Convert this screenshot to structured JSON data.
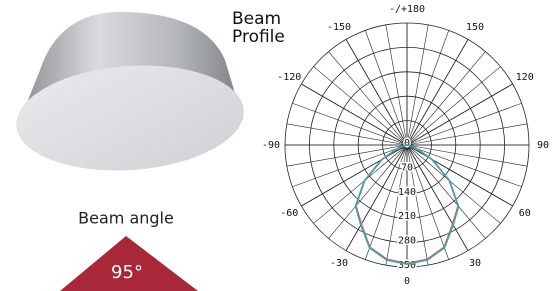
{
  "product": {
    "label": "Beam angle",
    "badge": "95°"
  },
  "chart_data": {
    "type": "polar",
    "title": "Beam Profile",
    "x": [
      -90,
      -80,
      -70,
      -60,
      -50,
      -40,
      -30,
      -20,
      -10,
      0,
      10,
      20,
      30,
      40,
      50,
      60,
      70,
      80,
      90
    ],
    "series": [
      {
        "color": "#e0553a",
        "values": [
          0,
          4,
          28,
          82,
          158,
          228,
          262,
          312,
          333,
          340,
          333,
          312,
          262,
          228,
          158,
          82,
          28,
          4,
          0
        ]
      },
      {
        "color": "#3aa6b9",
        "values": [
          0,
          5,
          30,
          85,
          160,
          230,
          265,
          314,
          335,
          342,
          335,
          314,
          265,
          230,
          160,
          85,
          30,
          5,
          0
        ]
      }
    ],
    "rlim": [
      0,
      350
    ],
    "rticks": [
      0,
      70,
      140,
      210,
      280,
      350
    ],
    "xticks": [
      -150,
      -120,
      -90,
      -60,
      -30,
      0,
      30,
      60,
      90,
      120,
      150,
      {
        "value": 180,
        "label": "-/+180"
      }
    ],
    "grid": true
  }
}
